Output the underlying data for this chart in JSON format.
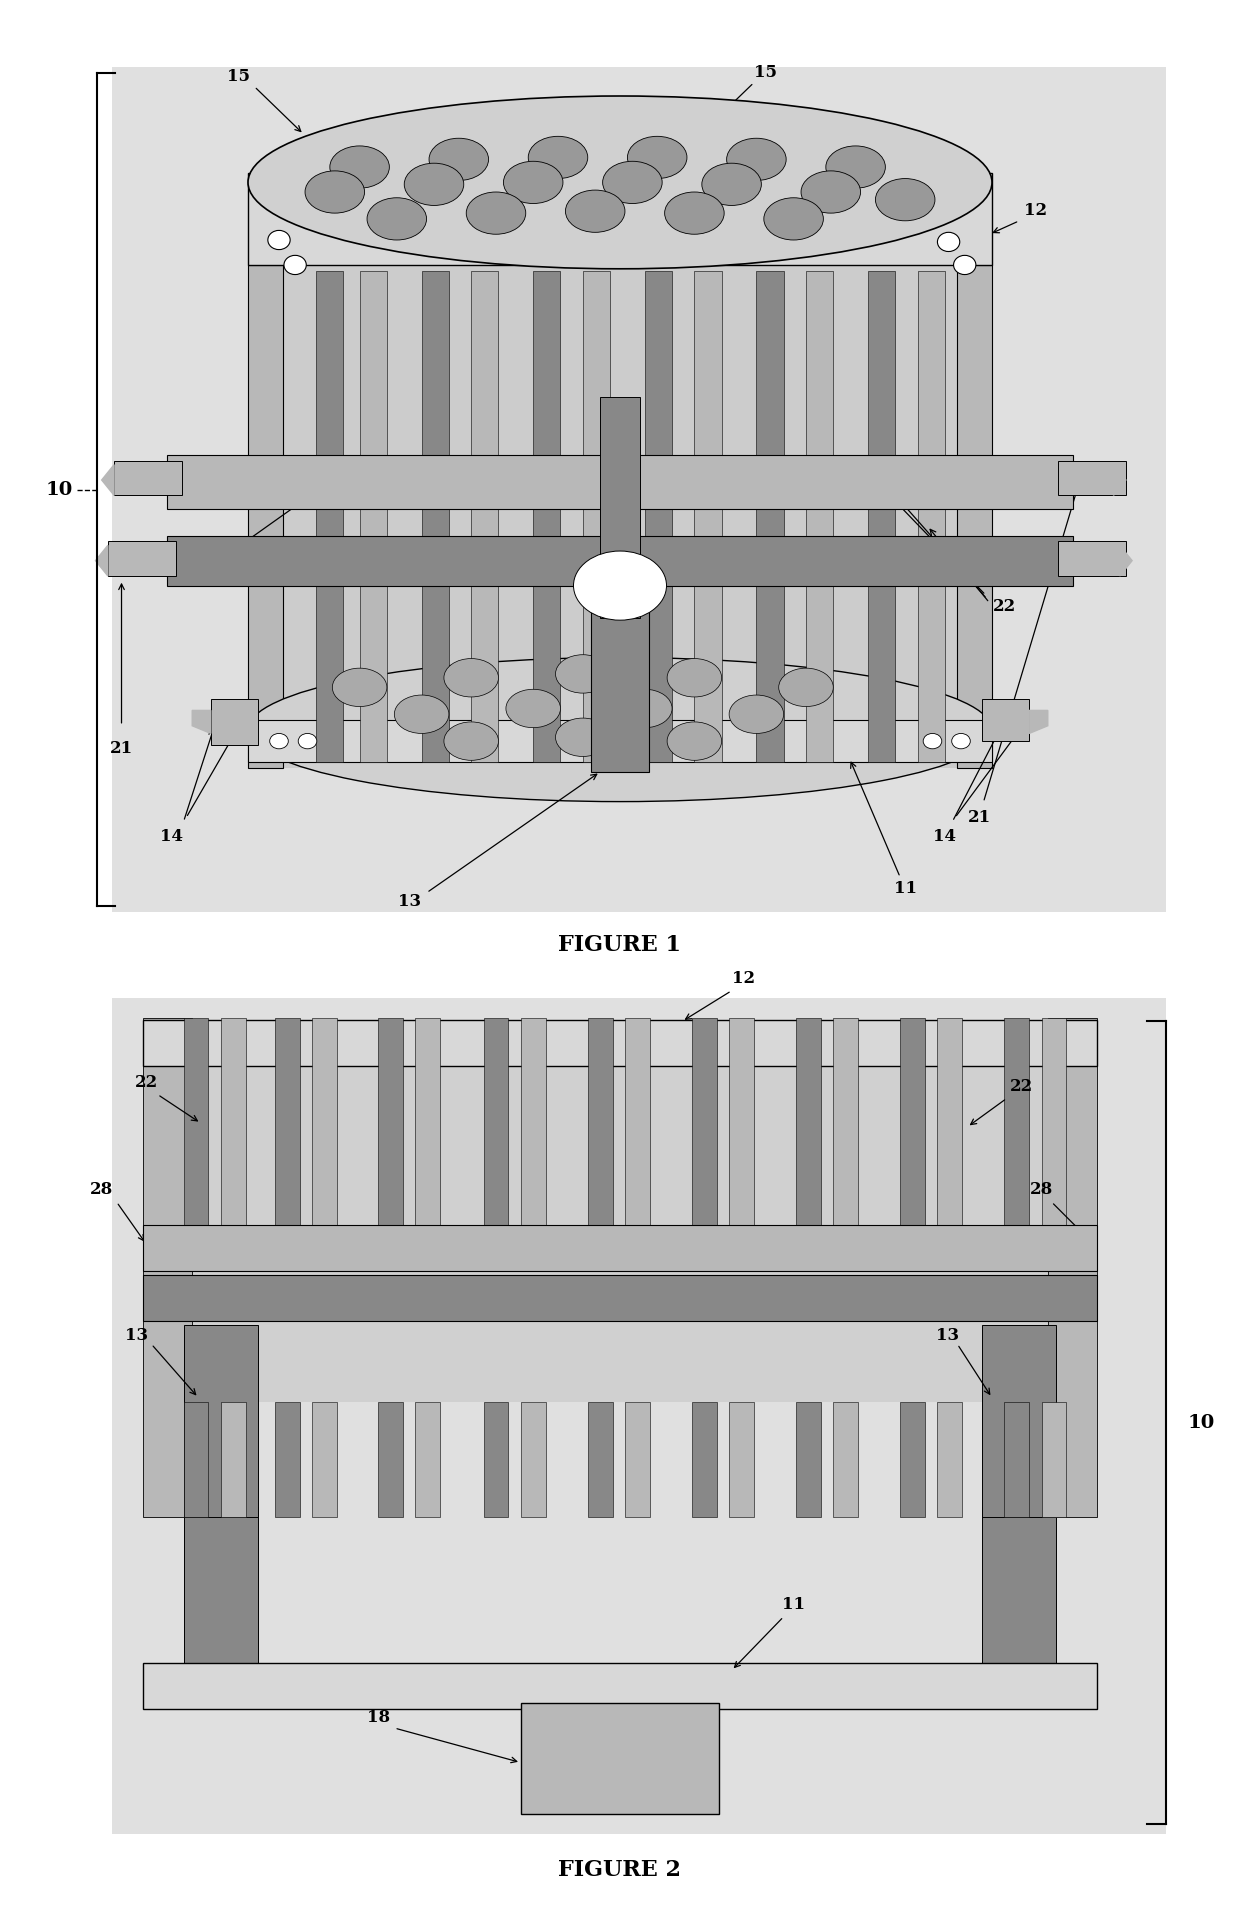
{
  "bg_color": "#ffffff",
  "fig_width": 12.4,
  "fig_height": 19.2,
  "line_color": "#000000",
  "shade_light": "#d8d8d8",
  "shade_mid": "#b8b8b8",
  "shade_dark": "#888888",
  "shade_bg": "#c8c8c8",
  "label_fs": 12,
  "title_fs": 16,
  "fig1_title": "FIGURE 1",
  "fig2_title": "FIGURE 2"
}
